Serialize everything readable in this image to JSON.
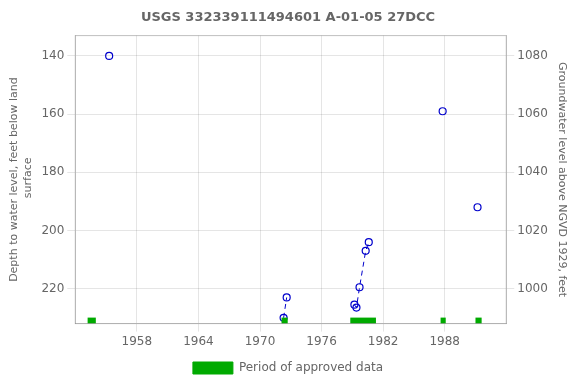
{
  "chart_data": {
    "type": "scatter",
    "title": "USGS 332339111494601 A-01-05 27DCC",
    "ylabel": "Depth to water level, feet below land\n surface",
    "y2label": "Groundwater level above NGVD 1929, feet",
    "xlim": [
      1952,
      1994
    ],
    "xticks": [
      1958,
      1964,
      1970,
      1976,
      1982,
      1988
    ],
    "ylim": [
      232,
      133
    ],
    "yticks": [
      140,
      160,
      180,
      200,
      220
    ],
    "y2lim": [
      988,
      1087
    ],
    "y2ticks": [
      1080,
      1060,
      1040,
      1020,
      1000
    ],
    "grid": true,
    "legend": "bottom",
    "series": [
      {
        "x": [
          1955.3,
          null,
          1972.3,
          1972.6,
          null,
          1979.2,
          1979.4,
          1979.7,
          1980.3,
          1980.6,
          null,
          1987.8,
          null,
          1991.2
        ],
        "values": [
          140.0,
          null,
          230.0,
          223.0,
          null,
          225.5,
          226.5,
          219.5,
          207.0,
          204.0,
          null,
          159.0,
          null,
          192.0
        ],
        "color": "#0000cc",
        "marker": "circle",
        "line_style": "dashed"
      },
      {
        "name": "Period of approved data",
        "type": "bar",
        "color": "#00aa00",
        "periods": [
          [
            1953.2,
            1954.0
          ],
          [
            1972.1,
            1972.7
          ],
          [
            1978.8,
            1981.3
          ],
          [
            1987.6,
            1988.1
          ],
          [
            1991.0,
            1991.6
          ]
        ]
      }
    ]
  }
}
